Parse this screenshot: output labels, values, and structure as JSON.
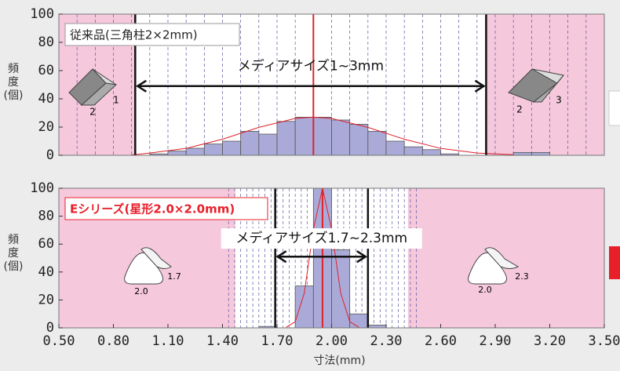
{
  "chart_data": [
    {
      "type": "histogram",
      "label": "従来品(三角柱2×2mm)",
      "range_label": "メディアサイズ1~3mm",
      "ylabel": "頻度(個)",
      "bins": [
        1.0,
        1.1,
        1.2,
        1.3,
        1.4,
        1.5,
        1.6,
        1.7,
        1.8,
        1.9,
        2.0,
        2.1,
        2.2,
        2.3,
        2.4,
        2.5,
        2.6,
        2.7,
        2.8,
        2.9,
        3.0,
        3.1,
        3.2
      ],
      "values": [
        1,
        3,
        5,
        8,
        10,
        17,
        15,
        24,
        27,
        27,
        25,
        22,
        17,
        10,
        6,
        4,
        1,
        0,
        0,
        0,
        2,
        2
      ],
      "color": "#aaaad8",
      "fit": {
        "x": [
          0.9,
          1.0,
          1.2,
          1.4,
          1.6,
          1.8,
          1.9,
          2.0,
          2.2,
          2.4,
          2.6,
          2.8,
          3.0
        ],
        "values": [
          0.3,
          1.6,
          4.9,
          11.4,
          19.8,
          26.1,
          27,
          26.1,
          19.8,
          11.4,
          4.9,
          1.6,
          0.4
        ],
        "color": "#e0202a"
      },
      "center": 1.9,
      "media_range": [
        0.92,
        2.85
      ],
      "white_range": [
        0.92,
        2.85
      ],
      "xlim": [
        0.5,
        3.5
      ],
      "ylim": [
        0,
        100
      ],
      "yticks": [
        0,
        20,
        40,
        60,
        80,
        100
      ],
      "annotations": [
        "2",
        "1",
        "2",
        "3"
      ]
    },
    {
      "type": "histogram",
      "label": "Eシリーズ(星形2.0×2.0mm)",
      "range_label": "メディアサイズ1.7~2.3mm",
      "ylabel": "頻度(個)",
      "xlabel": "寸法(mm)",
      "bins": [
        1.6,
        1.7,
        1.8,
        1.9,
        2.0,
        2.1,
        2.2,
        2.3
      ],
      "values": [
        1,
        0,
        30,
        100,
        56,
        10,
        2
      ],
      "color": "#aaaad8",
      "fit": {
        "x": [
          1.75,
          1.8,
          1.85,
          1.9,
          1.95,
          2.0,
          2.05,
          2.1,
          2.15
        ],
        "values": [
          0.4,
          4.4,
          24.9,
          70.7,
          100,
          70.7,
          24.9,
          4.4,
          0.4
        ],
        "color": "#e0202a"
      },
      "center": 1.95,
      "media_range": [
        1.69,
        2.2
      ],
      "white_range": [
        1.47,
        2.42
      ],
      "xlim": [
        0.5,
        3.5
      ],
      "ylim": [
        0,
        100
      ],
      "yticks": [
        0,
        20,
        40,
        60,
        80,
        100
      ],
      "xticks": [
        {
          "value": 0.5,
          "label": "0.50"
        },
        {
          "value": 0.8,
          "label": "0.80"
        },
        {
          "value": 1.1,
          "label": "1.10"
        },
        {
          "value": 1.4,
          "label": "1.40"
        },
        {
          "value": 1.7,
          "label": "1.70"
        },
        {
          "value": 2.0,
          "label": "2.00"
        },
        {
          "value": 2.3,
          "label": "2.30"
        },
        {
          "value": 2.6,
          "label": "2.60"
        },
        {
          "value": 2.9,
          "label": "2.90"
        },
        {
          "value": 3.2,
          "label": "3.20"
        },
        {
          "value": 3.5,
          "label": "3.50"
        }
      ],
      "annotations": [
        "2.0",
        "1.7",
        "2.0",
        "2.3"
      ]
    }
  ]
}
